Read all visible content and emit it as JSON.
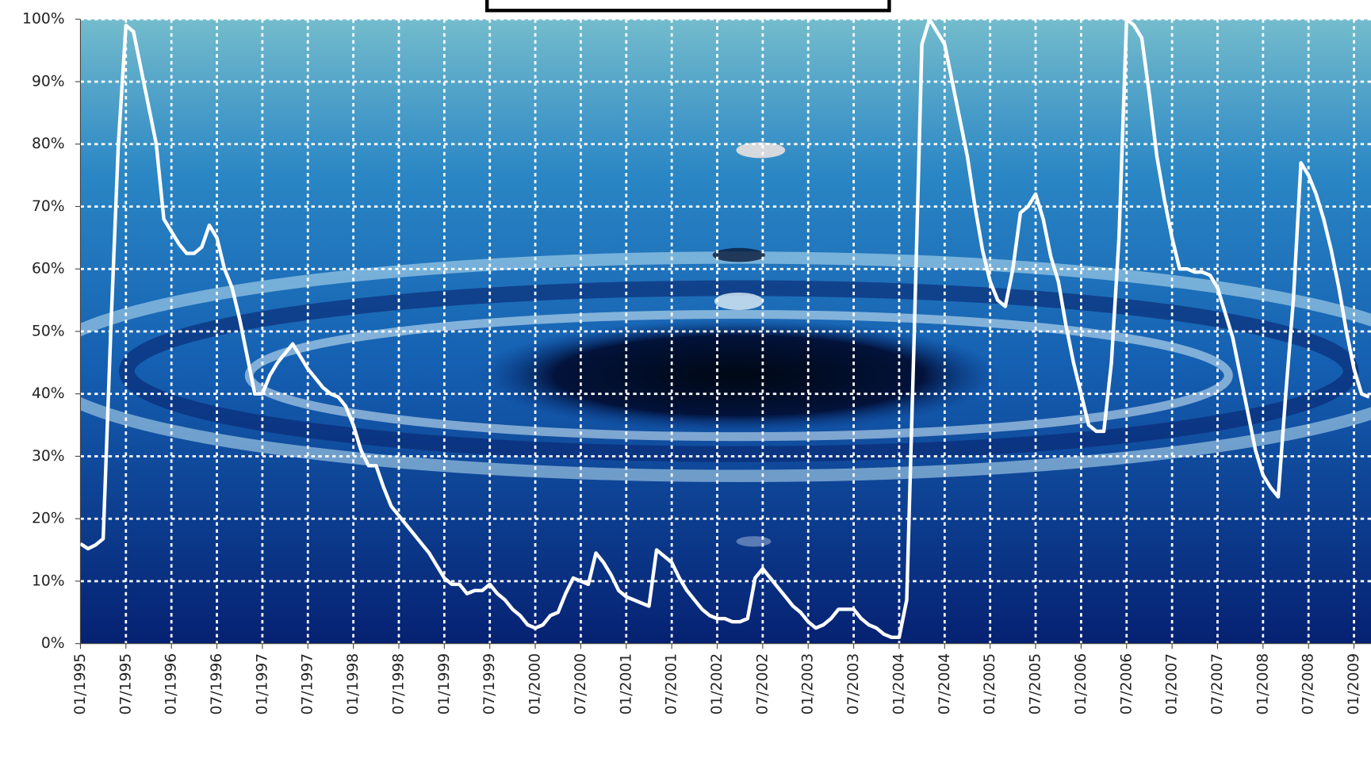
{
  "chart_data": {
    "type": "line",
    "categories": [
      "01/1995",
      null,
      null,
      null,
      null,
      null,
      "07/1995",
      null,
      null,
      null,
      null,
      null,
      "01/1996",
      null,
      null,
      null,
      null,
      null,
      "07/1996",
      null,
      null,
      null,
      null,
      null,
      "01/1997",
      null,
      null,
      null,
      null,
      null,
      "07/1997",
      null,
      null,
      null,
      null,
      null,
      "01/1998",
      null,
      null,
      null,
      null,
      null,
      "07/1998",
      null,
      null,
      null,
      null,
      null,
      "01/1999",
      null,
      null,
      null,
      null,
      null,
      "07/1999",
      null,
      null,
      null,
      null,
      null,
      "01/2000",
      null,
      null,
      null,
      null,
      null,
      "07/2000",
      null,
      null,
      null,
      null,
      null,
      "01/2001",
      null,
      null,
      null,
      null,
      null,
      "07/2001",
      null,
      null,
      null,
      null,
      null,
      "01/2002",
      null,
      null,
      null,
      null,
      null,
      "07/2002",
      null,
      null,
      null,
      null,
      null,
      "01/2003",
      null,
      null,
      null,
      null,
      null,
      "07/2003",
      null,
      null,
      null,
      null,
      null,
      "01/2004",
      null,
      null,
      null,
      null,
      null,
      "07/2004",
      null,
      null,
      null,
      null,
      null,
      "01/2005",
      null,
      null,
      null,
      null,
      null,
      "07/2005",
      null,
      null,
      null,
      null,
      null,
      "01/2006",
      null,
      null,
      null,
      null,
      null,
      "07/2006",
      null,
      null,
      null,
      null,
      null,
      "01/2007",
      null,
      null,
      null,
      null,
      null,
      "07/2007",
      null,
      null,
      null,
      null,
      null,
      "01/2008",
      null,
      null,
      null,
      null,
      null,
      "07/2008",
      null,
      null,
      null,
      null,
      null,
      "01/2009",
      null,
      null
    ],
    "values": [
      16,
      15.2,
      15.8,
      16.8,
      50,
      80,
      99,
      98,
      92,
      86,
      80,
      68,
      66,
      64,
      62.5,
      62.5,
      63.5,
      67,
      65,
      60,
      57,
      52,
      46,
      40,
      40,
      43,
      45,
      46.5,
      48,
      46,
      44,
      42.5,
      41,
      40,
      39.5,
      38,
      35,
      31,
      28.5,
      28.5,
      25,
      22,
      20.5,
      19,
      17.5,
      16,
      14.5,
      12.5,
      10.5,
      9.5,
      9.5,
      8,
      8.5,
      8.5,
      9.5,
      8,
      7,
      5.5,
      4.5,
      3,
      2.5,
      3,
      4.5,
      5,
      8,
      10.5,
      10,
      9.5,
      14.5,
      13,
      11,
      8.5,
      7.5,
      7,
      6.5,
      6,
      15,
      14,
      13,
      10.5,
      8.5,
      7,
      5.5,
      4.5,
      4,
      4,
      3.5,
      3.5,
      4,
      10.5,
      12,
      10.5,
      9,
      7.5,
      6,
      5,
      3.5,
      2.5,
      3,
      4,
      5.5,
      5.5,
      5.5,
      4,
      3,
      2.5,
      1.5,
      1,
      1,
      7,
      50,
      96,
      100,
      98,
      96,
      90,
      84,
      78,
      70,
      63,
      58,
      55,
      54,
      60,
      69,
      70,
      72,
      68,
      62,
      58,
      51,
      45,
      40,
      35,
      34,
      34,
      45,
      65,
      100,
      99,
      97,
      88,
      78,
      71,
      65,
      60,
      60,
      59.5,
      59.5,
      59,
      57,
      53,
      49,
      43,
      37,
      31,
      27,
      25,
      23.5,
      40,
      55,
      77,
      75,
      72,
      68,
      63,
      57,
      50,
      44,
      40,
      39.5
    ],
    "color": "#ffffff",
    "ylim": [
      0,
      100
    ],
    "yticks": [
      {
        "value": 0,
        "label": "0%"
      },
      {
        "value": 10,
        "label": "10%"
      },
      {
        "value": 20,
        "label": "20%"
      },
      {
        "value": 30,
        "label": "30%"
      },
      {
        "value": 40,
        "label": "40%"
      },
      {
        "value": 50,
        "label": "50%"
      },
      {
        "value": 60,
        "label": "60%"
      },
      {
        "value": 70,
        "label": "70%"
      },
      {
        "value": 80,
        "label": "80%"
      },
      {
        "value": 90,
        "label": "90%"
      },
      {
        "value": 100,
        "label": "100%"
      }
    ],
    "grid": true
  }
}
